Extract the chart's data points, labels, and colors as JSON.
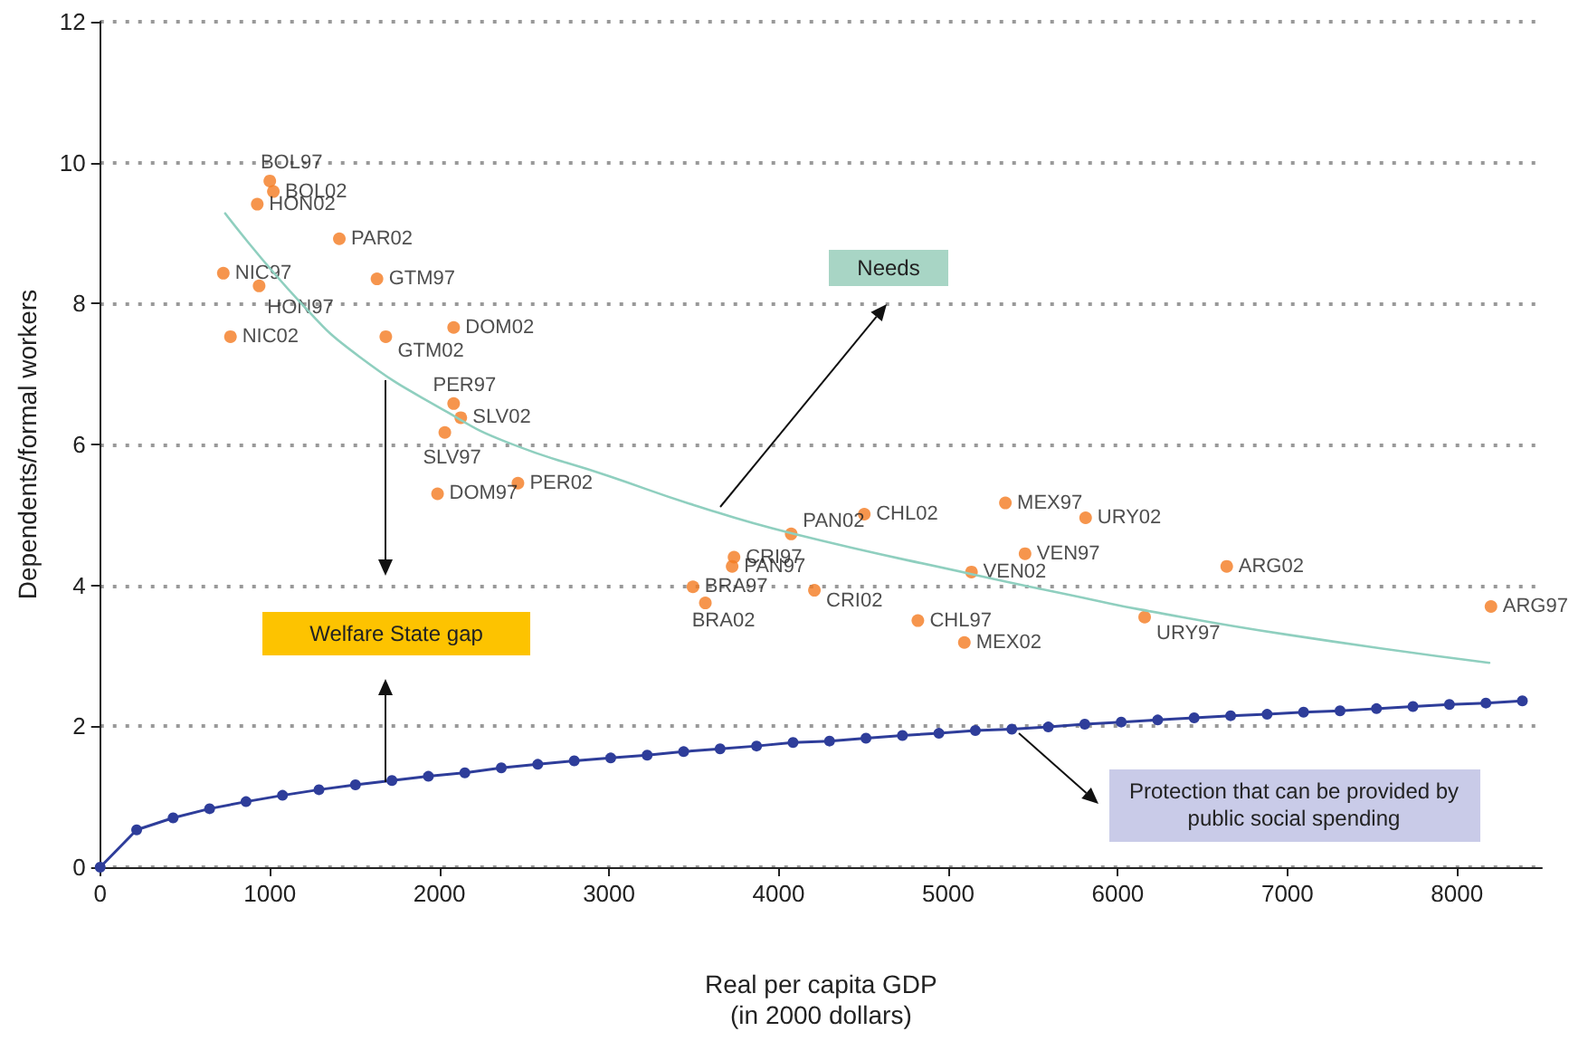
{
  "chart_data": {
    "type": "scatter",
    "xlabel": "Real per capita GDP\n(in 2000 dollars)",
    "ylabel": "Dependents/formal workers",
    "xlim": [
      0,
      8500
    ],
    "xticks": [
      0,
      1000,
      2000,
      3000,
      4000,
      5000,
      6000,
      7000,
      8000
    ],
    "ylim": [
      0,
      12
    ],
    "yticks": [
      0,
      2,
      4,
      6,
      8,
      10,
      12
    ],
    "grid": "y",
    "annotations": [
      "Needs",
      "Welfare State gap",
      "Protection that can be provided by public social spending"
    ],
    "series": [
      {
        "color": "#f47b20",
        "marker": "circle",
        "x": [
          1000,
          1021,
          926,
          1410,
          726,
          937,
          1632,
          768,
          1684,
          2084,
          2084,
          2126,
          2032,
          2463,
          1989,
          4505,
          5337,
          5810,
          4074,
          3737,
          3726,
          5453,
          5137,
          6642,
          3495,
          3568,
          4211,
          4821,
          5095,
          6158,
          8200
        ],
        "values": [
          9.74,
          9.59,
          9.41,
          8.92,
          8.43,
          8.25,
          8.35,
          7.53,
          7.53,
          7.66,
          6.58,
          6.38,
          6.17,
          5.45,
          5.3,
          5.01,
          5.17,
          4.96,
          4.73,
          4.4,
          4.27,
          4.45,
          4.19,
          4.27,
          3.98,
          3.75,
          3.93,
          3.5,
          3.19,
          3.55,
          3.7
        ],
        "value_labels": [
          "BOL97",
          "BOL02",
          "HON02",
          "PAR02",
          "NIC97",
          "HON97",
          "GTM97",
          "NIC02",
          "GTM02",
          "DOM02",
          "PER97",
          "SLV02",
          "SLV97",
          "PER02",
          "DOM97",
          "CHL02",
          "MEX97",
          "URY02",
          "PAN02",
          "CRI97",
          "PAN97",
          "VEN97",
          "VEN02",
          "ARG02",
          "BRA97",
          "BRA02",
          "CRI02",
          "CHL97",
          "MEX02",
          "URY97",
          "ARG97"
        ]
      },
      {
        "type": "line",
        "color": "#8fcfbf",
        "marker": "none",
        "line_style": "solid",
        "x": [
          737,
          1179,
          1526,
          2053,
          2400,
          3000,
          3500,
          4074,
          5137,
          5842,
          6126,
          7000,
          8190
        ],
        "values": [
          9.28,
          8.02,
          7.25,
          6.45,
          6.03,
          5.55,
          5.14,
          4.74,
          4.16,
          3.8,
          3.66,
          3.3,
          2.9
        ]
      },
      {
        "type": "line",
        "color": "#2e3d9a",
        "marker": "circle",
        "line_style": "solid",
        "x": [
          0,
          215,
          430,
          645,
          860,
          1075,
          1290,
          1505,
          1720,
          1935,
          2150,
          2365,
          2580,
          2795,
          3010,
          3225,
          3440,
          3655,
          3870,
          4085,
          4300,
          4515,
          4730,
          4945,
          5160,
          5375,
          5590,
          5805,
          6020,
          6235,
          6450,
          6665,
          6880,
          7095,
          7310,
          7525,
          7740,
          7955,
          8170,
          8385
        ],
        "values": [
          0,
          0.53,
          0.7,
          0.83,
          0.93,
          1.02,
          1.1,
          1.17,
          1.23,
          1.29,
          1.34,
          1.41,
          1.46,
          1.51,
          1.55,
          1.59,
          1.64,
          1.68,
          1.72,
          1.77,
          1.79,
          1.83,
          1.87,
          1.9,
          1.94,
          1.96,
          1.99,
          2.03,
          2.06,
          2.09,
          2.12,
          2.15,
          2.17,
          2.2,
          2.22,
          2.25,
          2.28,
          2.31,
          2.33,
          2.36
        ]
      }
    ]
  }
}
